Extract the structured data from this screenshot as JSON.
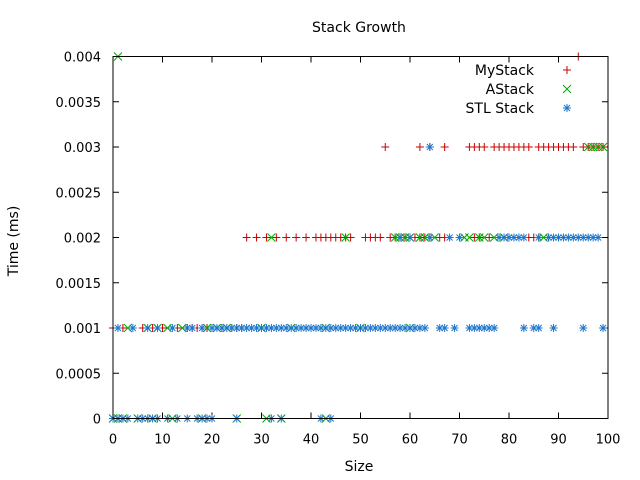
{
  "chart_data": {
    "type": "scatter",
    "title": "Stack Growth",
    "xlabel": "Size",
    "ylabel": "Time (ms)",
    "xlim": [
      0,
      100
    ],
    "ylim": [
      0,
      0.004
    ],
    "x_ticks": [
      "0",
      "10",
      "20",
      "30",
      "40",
      "50",
      "60",
      "70",
      "80",
      "90",
      "100"
    ],
    "y_ticks": [
      "0",
      "0.0005",
      "0.001",
      "0.0015",
      "0.002",
      "0.0025",
      "0.003",
      "0.0035",
      "0.004"
    ],
    "grid": false,
    "legend": {
      "position": "top-right"
    },
    "series": [
      {
        "name": "MyStack",
        "marker": "plus",
        "color": "#cc0000",
        "points": [
          [
            0,
            0.001
          ],
          [
            2,
            0.001
          ],
          [
            6,
            0.001
          ],
          [
            8,
            0.001
          ],
          [
            10,
            0.001
          ],
          [
            13,
            0.001
          ],
          [
            15,
            0.001
          ],
          [
            16,
            0.001
          ],
          [
            17,
            0.001
          ],
          [
            18,
            0.001
          ],
          [
            19,
            0.001
          ],
          [
            20,
            0.001
          ],
          [
            22,
            0.001
          ],
          [
            24,
            0.001
          ],
          [
            25,
            0.001
          ],
          [
            26,
            0.001
          ],
          [
            27,
            0.002
          ],
          [
            29,
            0.002
          ],
          [
            31,
            0.002
          ],
          [
            33,
            0.002
          ],
          [
            35,
            0.002
          ],
          [
            37,
            0.002
          ],
          [
            39,
            0.002
          ],
          [
            41,
            0.002
          ],
          [
            42,
            0.002
          ],
          [
            43,
            0.002
          ],
          [
            44,
            0.002
          ],
          [
            45,
            0.002
          ],
          [
            46,
            0.002
          ],
          [
            47,
            0.002
          ],
          [
            48,
            0.002
          ],
          [
            51,
            0.002
          ],
          [
            52,
            0.002
          ],
          [
            53,
            0.002
          ],
          [
            54,
            0.002
          ],
          [
            56,
            0.002
          ],
          [
            57,
            0.002
          ],
          [
            58,
            0.002
          ],
          [
            59,
            0.002
          ],
          [
            60,
            0.002
          ],
          [
            61,
            0.002
          ],
          [
            62,
            0.002
          ],
          [
            63,
            0.002
          ],
          [
            64,
            0.002
          ],
          [
            66,
            0.002
          ],
          [
            67,
            0.002
          ],
          [
            70,
            0.002
          ],
          [
            73,
            0.002
          ],
          [
            74,
            0.002
          ],
          [
            76,
            0.002
          ],
          [
            84,
            0.002
          ],
          [
            85,
            0.002
          ],
          [
            86,
            0.002
          ],
          [
            88,
            0.002
          ],
          [
            90,
            0.002
          ],
          [
            55,
            0.003
          ],
          [
            62,
            0.003
          ],
          [
            64,
            0.003
          ],
          [
            67,
            0.003
          ],
          [
            72,
            0.003
          ],
          [
            73,
            0.003
          ],
          [
            74,
            0.003
          ],
          [
            75,
            0.003
          ],
          [
            77,
            0.003
          ],
          [
            78,
            0.003
          ],
          [
            79,
            0.003
          ],
          [
            80,
            0.003
          ],
          [
            81,
            0.003
          ],
          [
            82,
            0.003
          ],
          [
            83,
            0.003
          ],
          [
            84,
            0.003
          ],
          [
            86,
            0.003
          ],
          [
            87,
            0.003
          ],
          [
            88,
            0.003
          ],
          [
            89,
            0.003
          ],
          [
            90,
            0.003
          ],
          [
            91,
            0.003
          ],
          [
            92,
            0.003
          ],
          [
            93,
            0.003
          ],
          [
            95,
            0.003
          ],
          [
            96,
            0.003
          ],
          [
            97,
            0.003
          ],
          [
            98,
            0.003
          ],
          [
            99,
            0.003
          ],
          [
            94,
            0.004
          ]
        ]
      },
      {
        "name": "AStack",
        "marker": "cross",
        "color": "#00aa00",
        "points": [
          [
            0,
            0
          ],
          [
            1,
            0
          ],
          [
            2,
            0
          ],
          [
            5,
            0
          ],
          [
            8,
            0
          ],
          [
            12,
            0
          ],
          [
            18,
            0
          ],
          [
            25,
            0
          ],
          [
            31,
            0
          ],
          [
            34,
            0
          ],
          [
            43,
            0
          ],
          [
            1,
            0.004
          ],
          [
            3,
            0.001
          ],
          [
            7,
            0.001
          ],
          [
            9,
            0.001
          ],
          [
            11,
            0.001
          ],
          [
            14,
            0.001
          ],
          [
            19,
            0.001
          ],
          [
            21,
            0.001
          ],
          [
            23,
            0.001
          ],
          [
            30,
            0.001
          ],
          [
            36,
            0.001
          ],
          [
            43,
            0.001
          ],
          [
            50,
            0.001
          ],
          [
            60,
            0.001
          ],
          [
            32,
            0.002
          ],
          [
            47,
            0.002
          ],
          [
            57,
            0.002
          ],
          [
            58,
            0.002
          ],
          [
            59,
            0.002
          ],
          [
            60,
            0.002
          ],
          [
            62,
            0.002
          ],
          [
            63,
            0.002
          ],
          [
            65,
            0.002
          ],
          [
            71,
            0.002
          ],
          [
            72,
            0.002
          ],
          [
            74,
            0.002
          ],
          [
            75,
            0.002
          ],
          [
            77,
            0.002
          ],
          [
            79,
            0.002
          ],
          [
            87,
            0.002
          ],
          [
            96,
            0.003
          ],
          [
            97,
            0.003
          ],
          [
            98,
            0.003
          ],
          [
            99,
            0.003
          ]
        ]
      },
      {
        "name": "STL Stack",
        "marker": "star",
        "color": "#1f77cc",
        "points": [
          [
            0,
            0
          ],
          [
            1,
            0
          ],
          [
            2,
            0
          ],
          [
            3,
            0
          ],
          [
            5,
            0
          ],
          [
            6,
            0
          ],
          [
            7,
            0
          ],
          [
            8,
            0
          ],
          [
            9,
            0
          ],
          [
            11,
            0
          ],
          [
            13,
            0
          ],
          [
            15,
            0
          ],
          [
            17,
            0
          ],
          [
            18,
            0
          ],
          [
            19,
            0
          ],
          [
            20,
            0
          ],
          [
            25,
            0
          ],
          [
            32,
            0
          ],
          [
            34,
            0
          ],
          [
            42,
            0
          ],
          [
            44,
            0
          ],
          [
            1,
            0.001
          ],
          [
            4,
            0.001
          ],
          [
            7,
            0.001
          ],
          [
            9,
            0.001
          ],
          [
            12,
            0.001
          ],
          [
            15,
            0.001
          ],
          [
            16,
            0.001
          ],
          [
            18,
            0.001
          ],
          [
            20,
            0.001
          ],
          [
            21,
            0.001
          ],
          [
            22,
            0.001
          ],
          [
            23,
            0.001
          ],
          [
            24,
            0.001
          ],
          [
            25,
            0.001
          ],
          [
            26,
            0.001
          ],
          [
            27,
            0.001
          ],
          [
            28,
            0.001
          ],
          [
            29,
            0.001
          ],
          [
            30,
            0.001
          ],
          [
            31,
            0.001
          ],
          [
            32,
            0.001
          ],
          [
            33,
            0.001
          ],
          [
            34,
            0.001
          ],
          [
            35,
            0.001
          ],
          [
            36,
            0.001
          ],
          [
            37,
            0.001
          ],
          [
            38,
            0.001
          ],
          [
            39,
            0.001
          ],
          [
            40,
            0.001
          ],
          [
            41,
            0.001
          ],
          [
            42,
            0.001
          ],
          [
            43,
            0.001
          ],
          [
            44,
            0.001
          ],
          [
            45,
            0.001
          ],
          [
            46,
            0.001
          ],
          [
            47,
            0.001
          ],
          [
            48,
            0.001
          ],
          [
            49,
            0.001
          ],
          [
            50,
            0.001
          ],
          [
            51,
            0.001
          ],
          [
            52,
            0.001
          ],
          [
            53,
            0.001
          ],
          [
            54,
            0.001
          ],
          [
            55,
            0.001
          ],
          [
            56,
            0.001
          ],
          [
            57,
            0.001
          ],
          [
            58,
            0.001
          ],
          [
            59,
            0.001
          ],
          [
            60,
            0.001
          ],
          [
            61,
            0.001
          ],
          [
            62,
            0.001
          ],
          [
            63,
            0.001
          ],
          [
            66,
            0.001
          ],
          [
            67,
            0.001
          ],
          [
            69,
            0.001
          ],
          [
            72,
            0.001
          ],
          [
            73,
            0.001
          ],
          [
            74,
            0.001
          ],
          [
            75,
            0.001
          ],
          [
            76,
            0.001
          ],
          [
            77,
            0.001
          ],
          [
            83,
            0.001
          ],
          [
            85,
            0.001
          ],
          [
            86,
            0.001
          ],
          [
            89,
            0.001
          ],
          [
            95,
            0.001
          ],
          [
            99,
            0.001
          ],
          [
            58,
            0.002
          ],
          [
            60,
            0.002
          ],
          [
            64,
            0.002
          ],
          [
            68,
            0.002
          ],
          [
            70,
            0.002
          ],
          [
            78,
            0.002
          ],
          [
            79,
            0.002
          ],
          [
            80,
            0.002
          ],
          [
            81,
            0.002
          ],
          [
            82,
            0.002
          ],
          [
            83,
            0.002
          ],
          [
            86,
            0.002
          ],
          [
            88,
            0.002
          ],
          [
            89,
            0.002
          ],
          [
            90,
            0.002
          ],
          [
            91,
            0.002
          ],
          [
            92,
            0.002
          ],
          [
            93,
            0.002
          ],
          [
            94,
            0.002
          ],
          [
            95,
            0.002
          ],
          [
            96,
            0.002
          ],
          [
            97,
            0.002
          ],
          [
            98,
            0.002
          ],
          [
            64,
            0.003
          ]
        ]
      }
    ]
  }
}
